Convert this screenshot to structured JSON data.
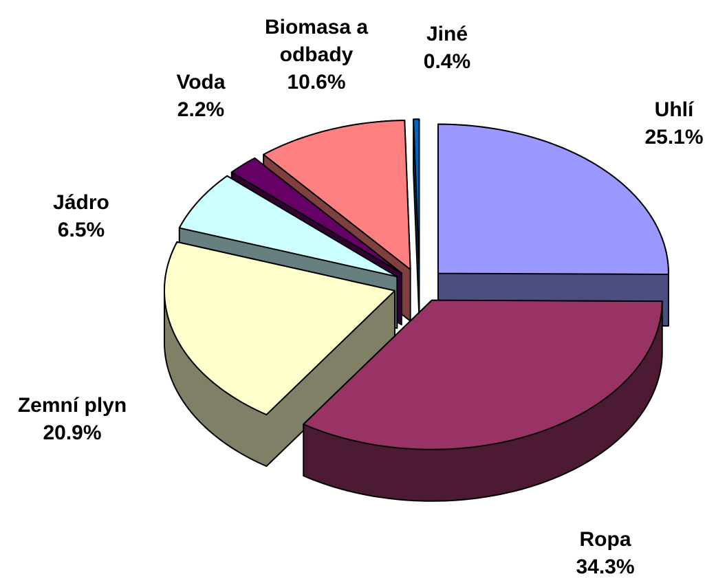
{
  "chart_data": {
    "type": "pie",
    "categories": [
      "Uhlí",
      "Ropa",
      "Zemní plyn",
      "Jádro",
      "Voda",
      "Biomasa a odbady",
      "Jiné"
    ],
    "values": [
      25.1,
      34.3,
      20.9,
      6.5,
      2.2,
      10.6,
      0.4
    ],
    "value_labels": [
      "25.1%",
      "34.3%",
      "20.9%",
      "6.5%",
      "2.2%",
      "10.6%",
      "0.4%"
    ],
    "colors": [
      "#9999ff",
      "#993366",
      "#ffffcc",
      "#ccffff",
      "#660066",
      "#ff8080",
      "#0066cc"
    ]
  }
}
